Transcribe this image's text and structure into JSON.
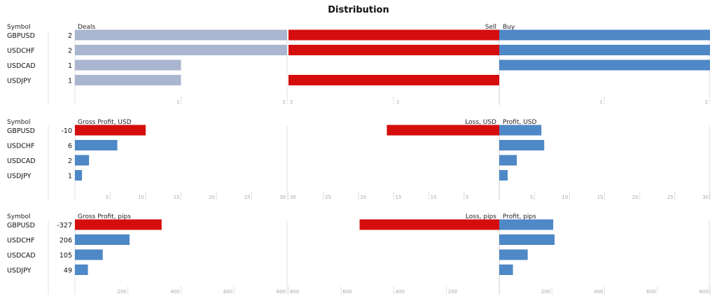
{
  "title": "Distribution",
  "colors": {
    "neutral": "#aab6cf",
    "buy": "#4f88c6",
    "sell": "#d50d0d",
    "grid": "#e0e0e0",
    "tick": "#a8a8a8"
  },
  "chart_data": [
    {
      "type": "bar",
      "symbol_header": "Symbol",
      "left_label": "Deals",
      "left_color": "neutral",
      "categories": [
        "GBPUSD",
        "USDCHF",
        "USDCAD",
        "USDJPY"
      ],
      "value_labels": [
        "2",
        "2",
        "1",
        "1"
      ],
      "values": [
        2,
        2,
        1,
        1
      ],
      "left_xlim": [
        0,
        2
      ],
      "left_ticks": [
        "1",
        "2"
      ],
      "right_labels": [
        "Sell",
        "Buy"
      ],
      "right_xlim": [
        -2,
        2
      ],
      "right_ticks": [
        "1",
        "1",
        "2"
      ],
      "series": [
        {
          "name": "Sell",
          "values": [
            2,
            2,
            0,
            2
          ]
        },
        {
          "name": "Buy",
          "values": [
            2,
            2,
            2,
            0
          ]
        }
      ]
    },
    {
      "type": "bar",
      "symbol_header": "Symbol",
      "left_label": "Gross Profit, USD",
      "categories": [
        "GBPUSD",
        "USDCHF",
        "USDCAD",
        "USDJPY"
      ],
      "value_labels": [
        "-10",
        "6",
        "2",
        "1"
      ],
      "values": [
        -10,
        6,
        2,
        1
      ],
      "left_xlim": [
        0,
        30
      ],
      "left_ticks": [
        "5",
        "10",
        "15",
        "20",
        "25",
        "30"
      ],
      "right_labels": [
        "Loss, USD",
        "Profit, USD"
      ],
      "right_xlim": [
        -30,
        30
      ],
      "right_ticks": [
        "30",
        "25",
        "20",
        "15",
        "10",
        "5",
        "5",
        "10",
        "15",
        "20",
        "25",
        "30"
      ],
      "series": [
        {
          "name": "Loss, USD",
          "values": [
            16,
            0,
            0,
            0
          ]
        },
        {
          "name": "Profit, USD",
          "values": [
            6,
            6.4,
            2.5,
            1.2
          ]
        }
      ]
    },
    {
      "type": "bar",
      "symbol_header": "Symbol",
      "left_label": "Gross Profit, pips",
      "categories": [
        "GBPUSD",
        "USDCHF",
        "USDCAD",
        "USDJPY"
      ],
      "value_labels": [
        "-327",
        "206",
        "105",
        "49"
      ],
      "values": [
        -327,
        206,
        105,
        49
      ],
      "left_xlim": [
        0,
        800
      ],
      "left_ticks": [
        "200",
        "400",
        "600",
        "800"
      ],
      "right_labels": [
        "Loss, pips",
        "Profit, pips"
      ],
      "right_xlim": [
        -800,
        800
      ],
      "right_ticks": [
        "800",
        "600",
        "400",
        "200",
        "200",
        "400",
        "600",
        "800"
      ],
      "series": [
        {
          "name": "Loss, pips",
          "values": [
            530,
            0,
            0,
            0
          ]
        },
        {
          "name": "Profit, pips",
          "values": [
            205,
            210,
            108,
            52
          ]
        }
      ]
    }
  ]
}
